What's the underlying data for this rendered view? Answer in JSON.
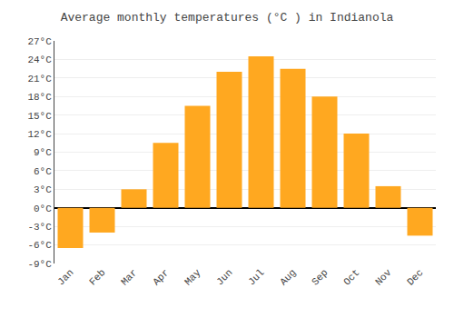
{
  "chart_data": {
    "type": "bar",
    "title": "Average monthly temperatures (°C ) in Indianola",
    "categories": [
      "Jan",
      "Feb",
      "Mar",
      "Apr",
      "May",
      "Jun",
      "Jul",
      "Aug",
      "Sep",
      "Oct",
      "Nov",
      "Dec"
    ],
    "values": [
      -6.5,
      -4.0,
      3.0,
      10.5,
      16.5,
      22.0,
      24.5,
      22.5,
      18.0,
      12.0,
      3.5,
      -4.5
    ],
    "color": "#FFA820",
    "ylim": [
      -9,
      27
    ],
    "yticks": [
      {
        "value": -9,
        "label": "-9°C"
      },
      {
        "value": -6,
        "label": "-6°C"
      },
      {
        "value": -3,
        "label": "-3°C"
      },
      {
        "value": 0,
        "label": "0°C"
      },
      {
        "value": 3,
        "label": "3°C"
      },
      {
        "value": 6,
        "label": "6°C"
      },
      {
        "value": 9,
        "label": "9°C"
      },
      {
        "value": 12,
        "label": "12°C"
      },
      {
        "value": 15,
        "label": "15°C"
      },
      {
        "value": 18,
        "label": "18°C"
      },
      {
        "value": 21,
        "label": "21°C"
      },
      {
        "value": 24,
        "label": "24°C"
      },
      {
        "value": 27,
        "label": "27°C"
      }
    ],
    "grid": true
  }
}
